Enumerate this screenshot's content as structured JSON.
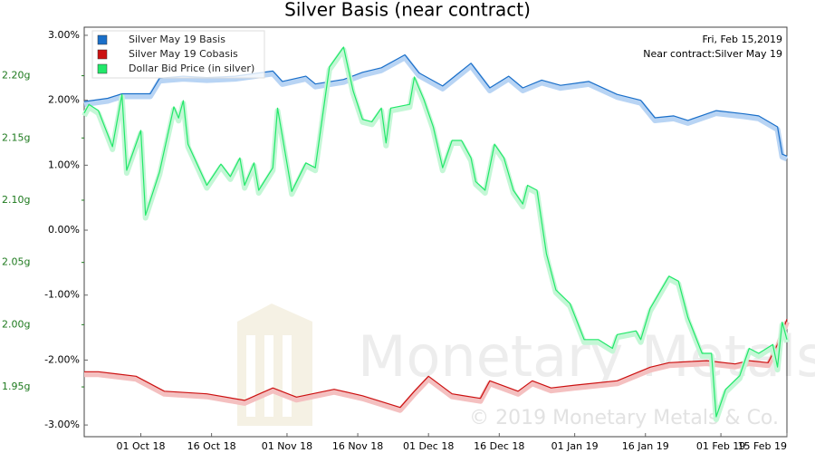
{
  "chart_data": {
    "type": "line",
    "title": "Silver Basis (near contract)",
    "annotations": [
      "Fri, Feb 15,2019",
      "Near contract:Silver May 19"
    ],
    "watermark": [
      "Monetary Metals",
      "© 2019 Monetary Metals & Co."
    ],
    "xlim": [
      "2018-09-19",
      "2019-02-15"
    ],
    "xticks": [
      {
        "value": "2018-10-01",
        "label": "01 Oct 18"
      },
      {
        "value": "2018-10-16",
        "label": "16 Oct 18"
      },
      {
        "value": "2018-11-01",
        "label": "01 Nov 18"
      },
      {
        "value": "2018-11-16",
        "label": "16 Nov 18"
      },
      {
        "value": "2018-12-01",
        "label": "01 Dec 18"
      },
      {
        "value": "2018-12-16",
        "label": "16 Dec 18"
      },
      {
        "value": "2019-01-01",
        "label": "01 Jan 19"
      },
      {
        "value": "2019-01-16",
        "label": "16 Jan 19"
      },
      {
        "value": "2019-02-01",
        "label": "01 Feb 19"
      },
      {
        "value": "2019-02-15",
        "label": "15 Feb 19"
      }
    ],
    "ylim": [
      -3.18,
      3.125
    ],
    "yticks": [
      {
        "value": 3,
        "label": "3.00%"
      },
      {
        "value": 2,
        "label": "2.00%"
      },
      {
        "value": 1,
        "label": "1.00%"
      },
      {
        "value": 0,
        "label": "0.00%"
      },
      {
        "value": -1,
        "label": "-1.00%"
      },
      {
        "value": -2,
        "label": "-2.00%"
      },
      {
        "value": -3,
        "label": "-3.00%"
      }
    ],
    "y2lim": [
      1.91,
      2.239
    ],
    "y2ticks": [
      {
        "value": 2.2,
        "label": "2.20g"
      },
      {
        "value": 2.15,
        "label": "2.15g"
      },
      {
        "value": 2.1,
        "label": "2.10g"
      },
      {
        "value": 2.05,
        "label": "2.05g"
      },
      {
        "value": 2.0,
        "label": "2.00g"
      },
      {
        "value": 1.95,
        "label": "1.95g"
      }
    ],
    "y2color": "#1e7a1e",
    "legend": "upper left",
    "series": [
      {
        "name": "Silver May 19 Basis",
        "color": "#1a6fc9",
        "glow": "#b8d4f4",
        "x": [
          "2018-09-19",
          "2018-09-24",
          "2018-09-27",
          "2018-10-03",
          "2018-10-05",
          "2018-10-10",
          "2018-10-15",
          "2018-10-21",
          "2018-10-29",
          "2018-10-31",
          "2018-11-05",
          "2018-11-07",
          "2018-11-13",
          "2018-11-17",
          "2018-11-21",
          "2018-11-26",
          "2018-11-29",
          "2018-12-04",
          "2018-12-10",
          "2018-12-14",
          "2018-12-18",
          "2018-12-21",
          "2018-12-25",
          "2018-12-29",
          "2019-01-04",
          "2019-01-10",
          "2019-01-15",
          "2019-01-18",
          "2019-01-22",
          "2019-01-25",
          "2019-01-31",
          "2019-02-06",
          "2019-02-09",
          "2019-02-13",
          "2019-02-14",
          "2019-02-15"
        ],
        "values": [
          1.98,
          2.03,
          2.1,
          2.1,
          2.34,
          2.37,
          2.35,
          2.37,
          2.45,
          2.29,
          2.37,
          2.25,
          2.32,
          2.43,
          2.5,
          2.7,
          2.42,
          2.22,
          2.57,
          2.19,
          2.37,
          2.19,
          2.31,
          2.23,
          2.29,
          2.09,
          2.0,
          1.73,
          1.76,
          1.69,
          1.84,
          1.79,
          1.76,
          1.59,
          1.17,
          1.14
        ]
      },
      {
        "name": "Silver May 19 Cobasis",
        "color": "#cc1111",
        "glow": "#f4c0c0",
        "x": [
          "2018-09-19",
          "2018-09-22",
          "2018-09-30",
          "2018-10-06",
          "2018-10-15",
          "2018-10-23",
          "2018-10-29",
          "2018-11-03",
          "2018-11-11",
          "2018-11-17",
          "2018-11-25",
          "2018-11-28",
          "2018-12-01",
          "2018-12-06",
          "2018-12-12",
          "2018-12-14",
          "2018-12-20",
          "2018-12-23",
          "2018-12-27",
          "2019-01-02",
          "2019-01-10",
          "2019-01-17",
          "2019-01-21",
          "2019-01-29",
          "2019-02-04",
          "2019-02-07",
          "2019-02-11",
          "2019-02-13",
          "2019-02-15"
        ],
        "values": [
          -2.18,
          -2.18,
          -2.25,
          -2.48,
          -2.52,
          -2.62,
          -2.43,
          -2.57,
          -2.45,
          -2.55,
          -2.73,
          -2.48,
          -2.25,
          -2.52,
          -2.59,
          -2.32,
          -2.48,
          -2.32,
          -2.43,
          -2.38,
          -2.32,
          -2.11,
          -2.04,
          -2.01,
          -2.06,
          -2.01,
          -2.04,
          -1.76,
          -1.37
        ]
      },
      {
        "name": "Dollar Bid Price (in silver)",
        "color": "#22e86a",
        "glow": "#c4f7d6",
        "axis": "y2",
        "x": [
          "2018-09-19",
          "2018-09-20",
          "2018-09-22",
          "2018-09-25",
          "2018-09-27",
          "2018-09-28",
          "2018-10-01",
          "2018-10-02",
          "2018-10-05",
          "2018-10-08",
          "2018-10-09",
          "2018-10-10",
          "2018-10-11",
          "2018-10-15",
          "2018-10-18",
          "2018-10-20",
          "2018-10-22",
          "2018-10-23",
          "2018-10-25",
          "2018-10-26",
          "2018-10-29",
          "2018-10-30",
          "2018-11-02",
          "2018-11-05",
          "2018-11-07",
          "2018-11-10",
          "2018-11-13",
          "2018-11-15",
          "2018-11-17",
          "2018-11-19",
          "2018-11-21",
          "2018-11-22",
          "2018-11-23",
          "2018-11-27",
          "2018-11-28",
          "2018-11-30",
          "2018-12-02",
          "2018-12-04",
          "2018-12-06",
          "2018-12-08",
          "2018-12-10",
          "2018-12-11",
          "2018-12-13",
          "2018-12-15",
          "2018-12-17",
          "2018-12-19",
          "2018-12-21",
          "2018-12-22",
          "2018-12-24",
          "2018-12-26",
          "2018-12-28",
          "2018-12-31",
          "2019-01-03",
          "2019-01-06",
          "2019-01-09",
          "2019-01-10",
          "2019-01-14",
          "2019-01-15",
          "2019-01-17",
          "2019-01-21",
          "2019-01-23",
          "2019-01-25",
          "2019-01-28",
          "2019-01-30",
          "2019-01-31",
          "2019-02-02",
          "2019-02-05",
          "2019-02-07",
          "2019-02-09",
          "2019-02-12",
          "2019-02-13",
          "2019-02-14",
          "2019-02-15"
        ],
        "values": [
          2.17,
          2.177,
          2.172,
          2.143,
          2.185,
          2.124,
          2.156,
          2.088,
          2.123,
          2.175,
          2.166,
          2.18,
          2.145,
          2.112,
          2.129,
          2.119,
          2.134,
          2.112,
          2.13,
          2.108,
          2.126,
          2.174,
          2.107,
          2.13,
          2.126,
          2.207,
          2.223,
          2.188,
          2.165,
          2.163,
          2.174,
          2.146,
          2.174,
          2.177,
          2.199,
          2.181,
          2.159,
          2.126,
          2.148,
          2.148,
          2.134,
          2.115,
          2.108,
          2.145,
          2.134,
          2.108,
          2.097,
          2.112,
          2.108,
          2.057,
          2.028,
          2.017,
          1.988,
          1.988,
          1.981,
          1.992,
          1.995,
          1.988,
          2.013,
          2.039,
          2.035,
          2.006,
          1.977,
          1.977,
          1.926,
          1.948,
          1.959,
          1.981,
          1.977,
          1.984,
          1.966,
          2.002,
          1.988
        ]
      }
    ]
  }
}
